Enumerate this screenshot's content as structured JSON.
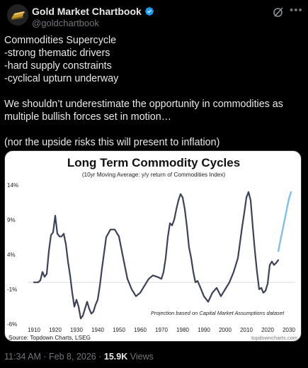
{
  "post": {
    "display_name": "Gold Market Chartbook",
    "handle": "@goldchartbook",
    "text": "Commodities Supercycle\n-strong thematic drivers\n-hard supply constraints\n-cyclical upturn underway\n\nWe shouldn’t underestimate the opportunity in commodities as multiple bullish forces set in motion…\n\n(nor the upside risks this will present to inflation)",
    "time": "11:34 AM",
    "separator": "·",
    "date": "Feb 8, 2026",
    "views_count": "15.9K",
    "views_label": "Views"
  },
  "icons": {
    "avatar": "gold-bar-icon",
    "verified": "verified-badge-icon",
    "grok": "grok-icon",
    "more": "more-icon"
  },
  "colors": {
    "background": "#000000",
    "text": "#e7e9ea",
    "muted": "#71767b",
    "verified_blue": "#1d9bf0",
    "line": "#3c4257",
    "projection": "#7fbfea"
  },
  "chart_data": {
    "type": "line",
    "title": "Long Term Commodity Cycles",
    "subtitle": "(10yr Moving Average: y/y return of Commodities Index)",
    "annotation": "Projection based on Capital Market Assumptions dataset",
    "source": "Source: Topdown Charts, LSEG",
    "watermark": "topdowncharts.com",
    "xlim": [
      1907,
      2033
    ],
    "ylim": [
      -6,
      14
    ],
    "x_ticks": [
      1910,
      1920,
      1930,
      1940,
      1950,
      1960,
      1970,
      1980,
      1990,
      2000,
      2010,
      2020,
      2030
    ],
    "y_ticks": [
      -6,
      -1,
      4,
      9,
      14
    ],
    "x_tick_labels": [
      "1910",
      "1920",
      "1930",
      "1940",
      "1950",
      "1960",
      "1970",
      "1980",
      "1990",
      "2000",
      "2010",
      "2020",
      "2030"
    ],
    "y_tick_labels": [
      "-6%",
      "-1%",
      "4%",
      "9%",
      "14%"
    ],
    "zero_line": true,
    "grid": false,
    "series": [
      {
        "x": [
          1910,
          1912,
          1913,
          1914,
          1915,
          1916,
          1917,
          1918,
          1919,
          1920,
          1921,
          1922,
          1923,
          1924,
          1925,
          1926,
          1927,
          1928,
          1929,
          1930,
          1931,
          1932,
          1933,
          1934,
          1935,
          1936,
          1937,
          1938,
          1939,
          1940,
          1941,
          1942,
          1944,
          1946,
          1948,
          1950,
          1952,
          1954,
          1956,
          1958,
          1960,
          1962,
          1964,
          1966,
          1968,
          1970,
          1971,
          1972,
          1973,
          1974,
          1975,
          1976,
          1977,
          1978,
          1979,
          1980,
          1981,
          1982,
          1983,
          1984,
          1985,
          1986,
          1987,
          1988,
          1990,
          1992,
          1994,
          1996,
          1998,
          1999,
          2000,
          2002,
          2004,
          2006,
          2008,
          2009,
          2010,
          2011,
          2012,
          2013,
          2014,
          2015,
          2016,
          2017,
          2018,
          2019,
          2020,
          2021,
          2022,
          2023,
          2024,
          2025
        ],
        "values": [
          0,
          0,
          0.3,
          1.5,
          0.8,
          1.2,
          4.5,
          6.8,
          7.2,
          9.6,
          7.0,
          6.6,
          6.6,
          7.0,
          5.5,
          3.0,
          1.0,
          -1.5,
          -3.5,
          -2.5,
          -3.5,
          -5.2,
          -4.8,
          -3.8,
          -2.8,
          -3.8,
          -4.5,
          -4.2,
          -3.2,
          -2.5,
          -0.5,
          2.0,
          6.5,
          7.6,
          7.6,
          6.6,
          3.5,
          0.5,
          -1.0,
          -2.0,
          -1.5,
          -0.5,
          0.5,
          1.0,
          0.8,
          0.5,
          1.5,
          3.5,
          6.5,
          8.5,
          8.2,
          9.0,
          10.5,
          11.8,
          12.7,
          12.2,
          10.5,
          8.0,
          5.0,
          3.5,
          1.5,
          0,
          0.2,
          -0.5,
          -2.0,
          -2.8,
          -1.5,
          -0.8,
          -2.0,
          -1.5,
          -1.0,
          0,
          1.5,
          3.5,
          8.0,
          10.0,
          12.2,
          13.0,
          11.8,
          8.0,
          4.5,
          1.5,
          -1.0,
          -0.8,
          -1.5,
          -1.2,
          -0.2,
          2.5,
          3.0,
          2.5,
          2.8,
          3.2
        ]
      },
      {
        "x": [
          2025,
          2026,
          2027,
          2028,
          2029,
          2030,
          2031
        ],
        "values": [
          4.5,
          6.0,
          7.5,
          9.0,
          10.5,
          12.0,
          13.0
        ]
      }
    ]
  }
}
